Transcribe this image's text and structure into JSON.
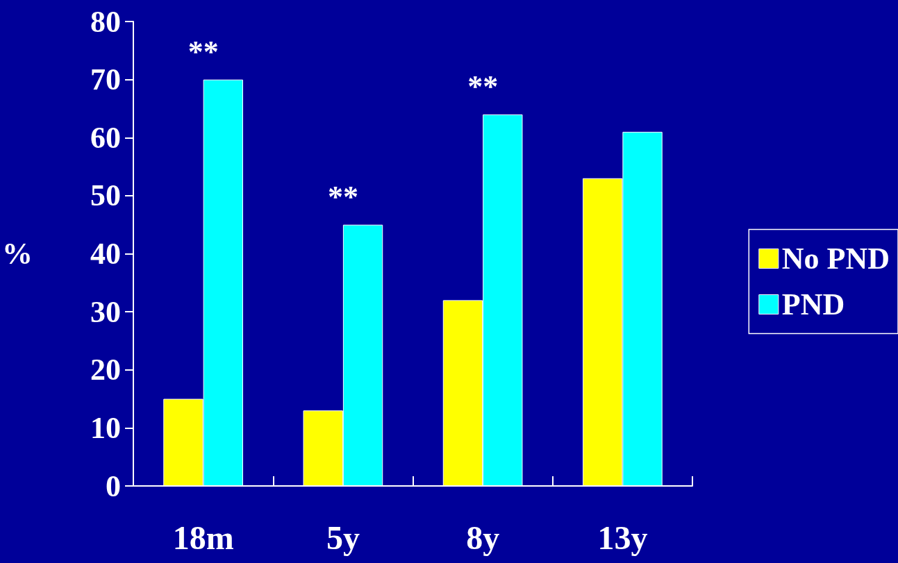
{
  "chart_data": {
    "type": "bar",
    "ylabel": "%",
    "categories": [
      "18m",
      "5y",
      "8y",
      "13y"
    ],
    "series": [
      {
        "name": "No PND",
        "color": "#ffff00",
        "values": [
          15,
          13,
          32,
          53
        ]
      },
      {
        "name": "PND",
        "color": "#00ffff",
        "values": [
          70,
          45,
          64,
          61
        ]
      }
    ],
    "ylim": [
      0,
      80
    ],
    "yticks": [
      0,
      10,
      20,
      30,
      40,
      50,
      60,
      70,
      80
    ],
    "grid": false,
    "legend": "right",
    "annotations": [
      {
        "text": "**",
        "x": "18m",
        "y": 70
      },
      {
        "text": "**",
        "x": "5y",
        "y": 45
      },
      {
        "text": "**",
        "x": "8y",
        "y": 64
      }
    ]
  }
}
